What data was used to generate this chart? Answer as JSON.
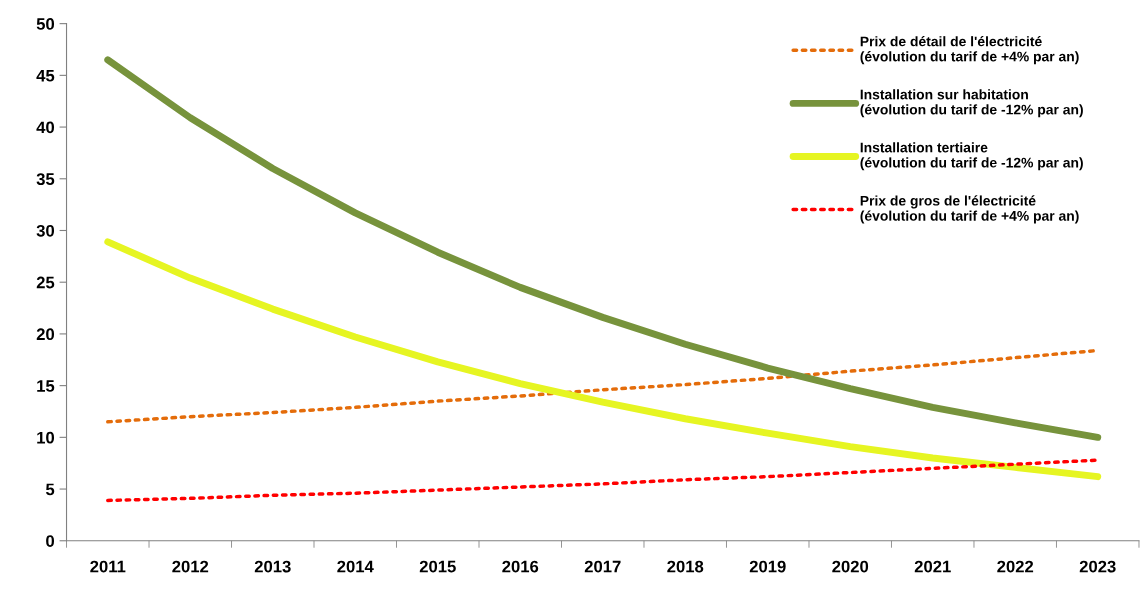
{
  "chart_data": {
    "type": "line",
    "categories": [
      "2011",
      "2012",
      "2013",
      "2014",
      "2015",
      "2016",
      "2017",
      "2018",
      "2019",
      "2020",
      "2021",
      "2022",
      "2023"
    ],
    "series": [
      {
        "name": "Prix de détail de l'électricité\n(évolution du tarif de +4% par an)",
        "color": "#e46c0a",
        "line_style": "dotted",
        "values": [
          11.5,
          12.0,
          12.4,
          12.9,
          13.5,
          14.0,
          14.6,
          15.1,
          15.7,
          16.4,
          17.0,
          17.7,
          18.4
        ]
      },
      {
        "name": "Installation sur habitation\n(évolution du tarif de -12% par an)",
        "color": "#77933c",
        "line_style": "solid",
        "values": [
          46.5,
          40.9,
          36.0,
          31.7,
          27.9,
          24.5,
          21.6,
          19.0,
          16.7,
          14.7,
          12.9,
          11.4,
          10.0
        ]
      },
      {
        "name": "Installation tertiaire\n(évolution du tarif de -12% par an)",
        "color": "#e6f522",
        "line_style": "solid",
        "values": [
          28.9,
          25.4,
          22.4,
          19.7,
          17.3,
          15.2,
          13.4,
          11.8,
          10.4,
          9.1,
          8.0,
          7.1,
          6.2
        ]
      },
      {
        "name": "Prix de gros de l'électricité\n(évolution du tarif de +4% par an)",
        "color": "#ff0000",
        "line_style": "dotted",
        "values": [
          3.9,
          4.1,
          4.4,
          4.6,
          4.9,
          5.2,
          5.5,
          5.9,
          6.2,
          6.6,
          7.0,
          7.4,
          7.8
        ]
      }
    ],
    "ylim": [
      0,
      50
    ],
    "yticks": [
      0,
      5,
      10,
      15,
      20,
      25,
      30,
      35,
      40,
      45,
      50
    ],
    "grid": false,
    "legend": "top right",
    "marker": "none"
  }
}
